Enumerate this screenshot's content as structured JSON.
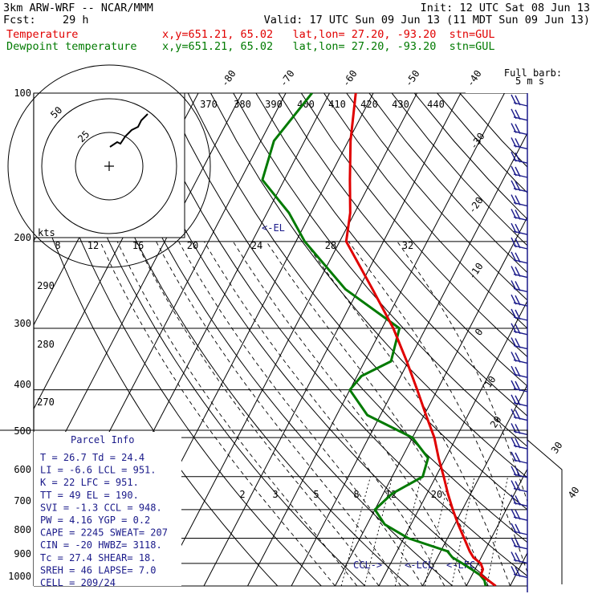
{
  "header": {
    "model": "3km ARW-WRF -- NCAR/MMM",
    "init": "Init: 12 UTC Sat 08 Jun 13",
    "fcst_label": "Fcst:",
    "fcst_value": "29 h",
    "valid": "Valid: 17 UTC Sun 09 Jun 13 (11 MDT Sun 09 Jun 13)",
    "temp_label": "Temperature",
    "temp_info": "x,y=651.21, 65.02   lat,lon= 27.20, -93.20  stn=GUL",
    "dew_label": "Dewpoint temperature",
    "dew_info": "x,y=651.21, 65.02   lat,lon= 27.20, -93.20  stn=GUL",
    "barb_legend_1": "Full barb:",
    "barb_legend_2": "5 m s"
  },
  "colors": {
    "temperature": "#e00000",
    "dewpoint": "#007a00",
    "annotation": "#1a1a8a"
  },
  "chart_data": {
    "type": "skew-t",
    "y_axis": {
      "scale": "log",
      "range": [
        1000,
        100
      ],
      "ticks": [
        "100",
        "200",
        "300",
        "400",
        "500",
        "600",
        "700",
        "800",
        "900",
        "1000"
      ]
    },
    "isotherm_labels": [
      "-80",
      "-70",
      "-60",
      "-50",
      "-40",
      "-30",
      "-20",
      "-10",
      "0",
      "10",
      "20",
      "30",
      "40"
    ],
    "theta_labels": [
      "370",
      "380",
      "390",
      "400",
      "410",
      "420",
      "430",
      "440",
      "290",
      "280",
      "270"
    ],
    "mixing_ratio_labels": [
      "2",
      "3",
      "5",
      "8",
      "12",
      "20"
    ],
    "hodograph": {
      "ring_labels": [
        "25",
        "50"
      ],
      "unit": "kts",
      "speed_labels": [
        "8",
        "12",
        "16",
        "20",
        "24",
        "28",
        "32"
      ]
    },
    "annotations": {
      "el": "<-EL",
      "ccl": "CCL->",
      "lcl": "<-LCL",
      "lfc": "<-LFC"
    },
    "temperature": [
      [
        1000,
        26.7
      ],
      [
        975,
        24.4
      ],
      [
        950,
        22.0
      ],
      [
        925,
        21.8
      ],
      [
        900,
        20.6
      ],
      [
        875,
        18.2
      ],
      [
        850,
        16.6
      ],
      [
        800,
        13.8
      ],
      [
        750,
        10.8
      ],
      [
        700,
        7.8
      ],
      [
        650,
        4.8
      ],
      [
        600,
        1.8
      ],
      [
        550,
        -1.6
      ],
      [
        500,
        -5.0
      ],
      [
        450,
        -9.6
      ],
      [
        400,
        -14.6
      ],
      [
        350,
        -20.4
      ],
      [
        300,
        -27.4
      ],
      [
        250,
        -36.8
      ],
      [
        200,
        -48.5
      ],
      [
        175,
        -51.0
      ],
      [
        150,
        -55.0
      ],
      [
        125,
        -59.5
      ],
      [
        100,
        -64.0
      ]
    ],
    "dewpoint": [
      [
        1000,
        24.4
      ],
      [
        975,
        23.5
      ],
      [
        950,
        21.8
      ],
      [
        925,
        19.2
      ],
      [
        900,
        16.4
      ],
      [
        875,
        13.4
      ],
      [
        850,
        11.5
      ],
      [
        800,
        1.0
      ],
      [
        750,
        -6.0
      ],
      [
        700,
        -10.0
      ],
      [
        650,
        -8.0
      ],
      [
        600,
        -3.0
      ],
      [
        550,
        -4.0
      ],
      [
        500,
        -10.0
      ],
      [
        450,
        -23.0
      ],
      [
        400,
        -30.0
      ],
      [
        375,
        -29.0
      ],
      [
        350,
        -24.0
      ],
      [
        300,
        -26.0
      ],
      [
        250,
        -43.0
      ],
      [
        200,
        -58.0
      ],
      [
        175,
        -65.0
      ],
      [
        150,
        -75.0
      ],
      [
        125,
        -77.0
      ],
      [
        100,
        -74.0
      ]
    ],
    "parcel_info": {
      "title": "Parcel Info",
      "rows": [
        "T  =    26.7  Td =  24.4",
        "LI =    -6.6  LCL =  951.",
        "K  =      22  LFC =  951.",
        "TT =      49  EL  =  190.",
        "SVI =   -1.3  CCL =  948.",
        "PW  =   4.16  YGP =   0.2",
        "CAPE =  2245  SWEAT= 207",
        "CIN  =   -20  HWBZ= 3118.",
        "Tc  =   27.4  SHEAR=  18.",
        "SREH =    46  LAPSE=  7.0",
        "CELL = 209/24"
      ]
    }
  }
}
